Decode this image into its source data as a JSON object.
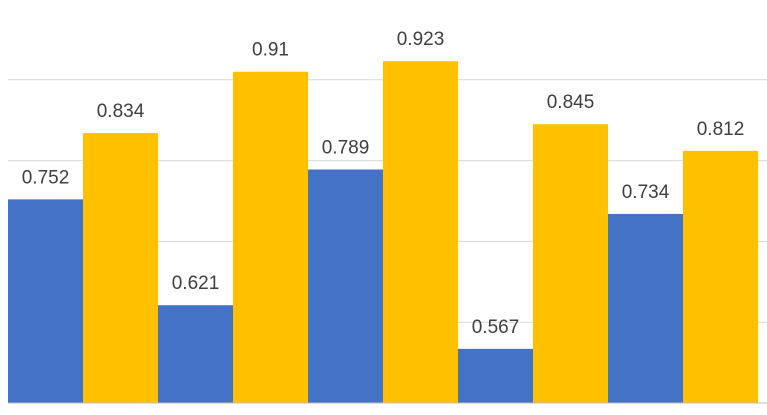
{
  "chart_data": {
    "type": "bar",
    "title": "",
    "xlabel": "",
    "ylabel": "",
    "categories": [
      "",
      "",
      "",
      ""
    ],
    "ylim": [
      0.5,
      1.0
    ],
    "grid": true,
    "legend": "none",
    "data_labels": true,
    "series": [
      {
        "color": "#4472C4",
        "values": [
          0.752,
          0.621,
          0.789,
          0.567
        ],
        "labels": [
          "0.752",
          "0.621",
          "0.789",
          "0.567"
        ]
      },
      {
        "color": "#FFC000",
        "values": [
          0.834,
          0.91,
          0.923,
          0.845
        ],
        "labels": [
          "0.834",
          "0.91",
          "0.923",
          "0.845"
        ]
      }
    ],
    "extra_bars": [
      {
        "color": "#4472C4",
        "value": 0.734,
        "label": "0.734"
      },
      {
        "color": "#FFC000",
        "value": 0.812,
        "label": "0.812"
      }
    ]
  }
}
